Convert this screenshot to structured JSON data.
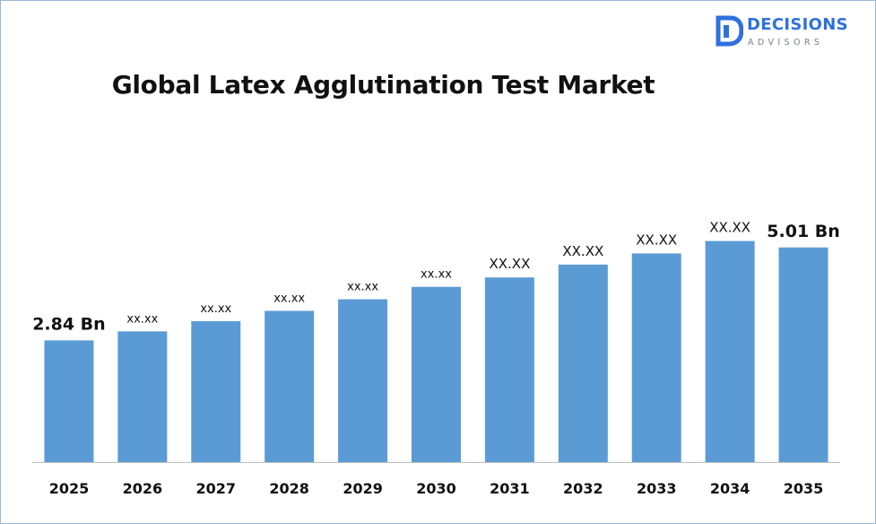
{
  "brand": {
    "name": "DECISIONS",
    "sub": "ADVISORS"
  },
  "colors": {
    "bar": "#5b9bd5",
    "text": "#111111",
    "axis": "#bfbfbf",
    "brand": "#2f6fe0"
  },
  "chart_data": {
    "type": "bar",
    "title": "Global Latex Agglutination Test Market",
    "xlabel": "",
    "ylabel": "",
    "categories": [
      "2025",
      "2026",
      "2027",
      "2028",
      "2029",
      "2030",
      "2031",
      "2032",
      "2033",
      "2034",
      "2035"
    ],
    "values": [
      2.84,
      3.05,
      3.29,
      3.53,
      3.8,
      4.09,
      4.31,
      4.61,
      4.87,
      5.16,
      5.01
    ],
    "data_labels": [
      "2.84 Bn",
      "xx.xx",
      "xx.xx",
      "xx.xx",
      "xx.xx",
      "xx.xx",
      "XX.XX",
      "XX.XX",
      "XX.XX",
      "XX.XX",
      "5.01 Bn"
    ],
    "ylim": [
      0,
      8.9
    ],
    "grid": false,
    "legend": "none"
  }
}
